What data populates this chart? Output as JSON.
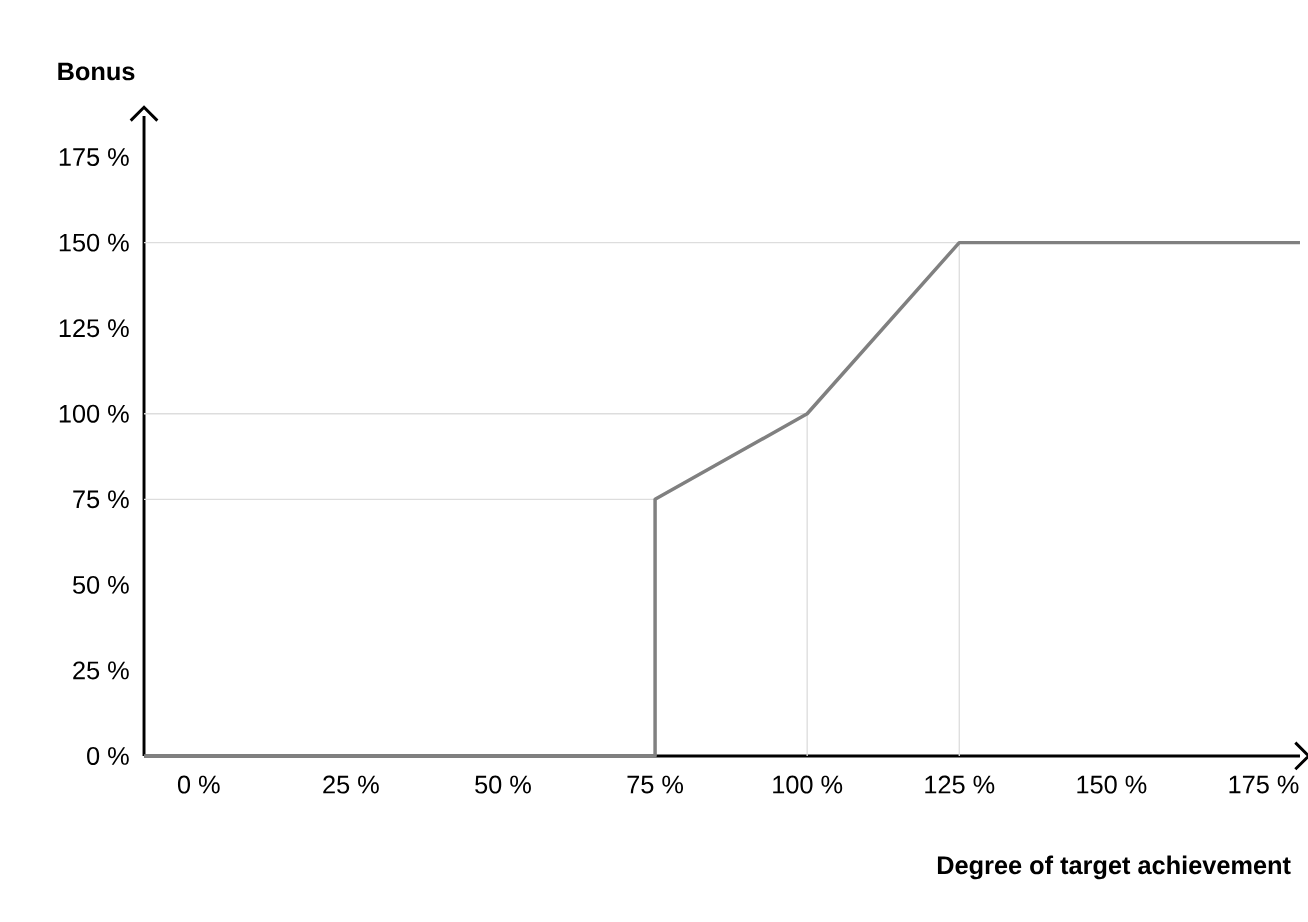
{
  "chart_data": {
    "type": "line",
    "xlabel": "Degree of target achievement",
    "ylabel": "Bonus",
    "x": [
      -9,
      75,
      75,
      100,
      125,
      181
    ],
    "series": [
      {
        "color": "#808080",
        "values": [
          0,
          0,
          75,
          100,
          150,
          150
        ]
      }
    ],
    "xlim": [
      -9,
      181
    ],
    "ylim": [
      0,
      187
    ],
    "xticks": [
      {
        "value": 0,
        "label": "0 %"
      },
      {
        "value": 25,
        "label": "25 %"
      },
      {
        "value": 50,
        "label": "50 %"
      },
      {
        "value": 75,
        "label": "75 %"
      },
      {
        "value": 100,
        "label": "100 %"
      },
      {
        "value": 125,
        "label": "125 %"
      },
      {
        "value": 150,
        "label": "150 %"
      },
      {
        "value": 175,
        "label": "175 %"
      }
    ],
    "yticks": [
      {
        "value": 0,
        "label": "0 %"
      },
      {
        "value": 25,
        "label": "25 %"
      },
      {
        "value": 50,
        "label": "50 %"
      },
      {
        "value": 75,
        "label": "75 %"
      },
      {
        "value": 100,
        "label": "100 %"
      },
      {
        "value": 125,
        "label": "125 %"
      },
      {
        "value": 150,
        "label": "150 %"
      },
      {
        "value": 175,
        "label": "175 %"
      }
    ],
    "ref_lines": [
      {
        "axis": "y",
        "value": 75,
        "color": "#dddddd"
      },
      {
        "axis": "y",
        "value": 100,
        "color": "#dddddd"
      },
      {
        "axis": "y",
        "value": 150,
        "color": "#dddddd"
      },
      {
        "axis": "x",
        "value": 100,
        "color": "#dddddd"
      },
      {
        "axis": "x",
        "value": 125,
        "color": "#dddddd"
      }
    ],
    "grid": false,
    "marker": "none",
    "line_style": "solid"
  }
}
